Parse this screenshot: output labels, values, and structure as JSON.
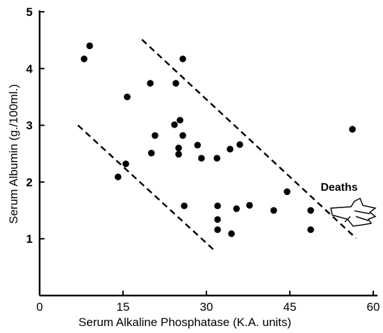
{
  "chart_data": {
    "type": "scatter",
    "x_label": "Serum Alkaline Phosphatase (K.A. units)",
    "y_label": "Serum Albumin (g./100ml.)",
    "annotation": "Deaths",
    "x": [
      8.0,
      9.0,
      15.75,
      19.9,
      24.5,
      25.75,
      15.5,
      14.1,
      20.1,
      20.75,
      24.25,
      25.25,
      25.75,
      25.0,
      25.0,
      28.4,
      29.1,
      31.9,
      34.25,
      36.0,
      26.0,
      32.0,
      32.0,
      32.0,
      34.5,
      35.4,
      37.75,
      42.1,
      44.5,
      48.75,
      48.75,
      56.25
    ],
    "values": [
      4.17,
      4.4,
      3.5,
      3.74,
      3.74,
      4.17,
      2.32,
      2.09,
      2.51,
      2.82,
      3.01,
      3.09,
      2.82,
      2.6,
      2.49,
      2.65,
      2.42,
      2.42,
      2.58,
      2.66,
      1.58,
      1.58,
      1.34,
      1.16,
      1.09,
      1.53,
      1.59,
      1.5,
      1.83,
      1.5,
      1.16,
      2.93
    ],
    "color": "#000000",
    "reference_lines": [
      {
        "x": [
          6.9,
          31.6
        ],
        "y": [
          3.0,
          0.78
        ]
      },
      {
        "x": [
          18.4,
          56.9
        ],
        "y": [
          4.51,
          1.01
        ]
      }
    ],
    "xlim": [
      0,
      60
    ],
    "xticks": [
      0,
      15,
      30,
      45,
      60
    ],
    "ylim": [
      0,
      5
    ],
    "yticks": [
      1,
      2,
      3,
      4,
      5
    ]
  }
}
